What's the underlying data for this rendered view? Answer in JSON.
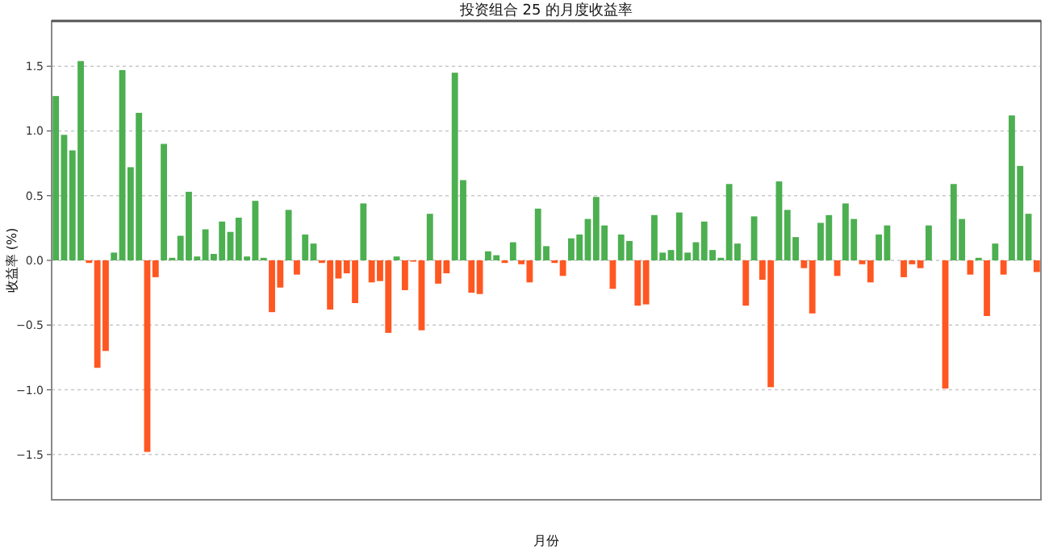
{
  "chart_data": {
    "type": "bar",
    "title": "投资组合 25 的月度收益率",
    "xlabel": "月份",
    "ylabel": "收益率 (%)",
    "categories": [
      null,
      null,
      null,
      null,
      null,
      null,
      null,
      null,
      null,
      null,
      null,
      null,
      null,
      null,
      null,
      null,
      null,
      null,
      null,
      null,
      null,
      null,
      null,
      null,
      null,
      null,
      null,
      null,
      null,
      null,
      null,
      null,
      null,
      null,
      null,
      null,
      null,
      null,
      null,
      null,
      null,
      null,
      null,
      null,
      null,
      null,
      null,
      null,
      null,
      null,
      null,
      null,
      null,
      null,
      null,
      null,
      null,
      null,
      null,
      null,
      null,
      null,
      null,
      null,
      null,
      null,
      null,
      null,
      null,
      null,
      null,
      null,
      null,
      null,
      null,
      null,
      null,
      null,
      null,
      null,
      null,
      null,
      null,
      null,
      null,
      null,
      null,
      null,
      null,
      null,
      null,
      null,
      null,
      null,
      null,
      null,
      null,
      null,
      null,
      null,
      null,
      null,
      null,
      null,
      null,
      null,
      null,
      null,
      null,
      null,
      null,
      null,
      null,
      null,
      null,
      null,
      null,
      null,
      null
    ],
    "values": [
      1.27,
      0.97,
      0.85,
      1.54,
      -0.02,
      -0.83,
      -0.7,
      0.06,
      1.47,
      0.72,
      1.14,
      -1.48,
      -0.13,
      0.9,
      0.02,
      0.19,
      0.53,
      0.03,
      0.24,
      0.05,
      0.3,
      0.22,
      0.33,
      0.03,
      0.46,
      0.02,
      -0.4,
      -0.21,
      0.39,
      -0.11,
      0.2,
      0.13,
      -0.02,
      -0.38,
      -0.14,
      -0.1,
      -0.33,
      0.44,
      -0.17,
      -0.16,
      -0.56,
      0.03,
      -0.23,
      -0.01,
      -0.54,
      0.36,
      -0.18,
      -0.1,
      1.45,
      0.62,
      -0.25,
      -0.26,
      0.07,
      0.04,
      -0.02,
      0.14,
      -0.03,
      -0.17,
      0.4,
      0.11,
      -0.02,
      -0.12,
      0.17,
      0.2,
      0.32,
      0.49,
      0.27,
      -0.22,
      0.2,
      0.15,
      -0.35,
      -0.34,
      0.35,
      0.06,
      0.08,
      0.37,
      0.06,
      0.14,
      0.3,
      0.08,
      0.02,
      0.59,
      0.13,
      -0.35,
      0.34,
      -0.15,
      -0.98,
      0.61,
      0.39,
      0.18,
      -0.06,
      -0.41,
      0.29,
      0.35,
      -0.12,
      0.44,
      0.32,
      -0.03,
      -0.17,
      0.2,
      0.27,
      0,
      -0.13,
      -0.03,
      -0.06,
      0.27,
      0,
      -0.99,
      0.59,
      0.32,
      -0.11,
      0.02,
      -0.43,
      0.13,
      -0.11,
      1.12,
      0.73,
      0.36,
      -0.09
    ],
    "colors": [
      "#4caf50",
      "#4caf50",
      "#4caf50",
      "#4caf50",
      "#ff5722",
      "#ff5722",
      "#ff5722",
      "#4caf50",
      "#4caf50",
      "#4caf50",
      "#4caf50",
      "#ff5722",
      "#ff5722",
      "#4caf50",
      "#4caf50",
      "#4caf50",
      "#4caf50",
      "#4caf50",
      "#4caf50",
      "#4caf50",
      "#4caf50",
      "#4caf50",
      "#4caf50",
      "#4caf50",
      "#4caf50",
      "#4caf50",
      "#ff5722",
      "#ff5722",
      "#4caf50",
      "#ff5722",
      "#4caf50",
      "#4caf50",
      "#ff5722",
      "#ff5722",
      "#ff5722",
      "#ff5722",
      "#ff5722",
      "#4caf50",
      "#ff5722",
      "#ff5722",
      "#ff5722",
      "#4caf50",
      "#ff5722",
      "#ff5722",
      "#ff5722",
      "#4caf50",
      "#ff5722",
      "#ff5722",
      "#4caf50",
      "#4caf50",
      "#ff5722",
      "#ff5722",
      "#4caf50",
      "#4caf50",
      "#ff5722",
      "#4caf50",
      "#ff5722",
      "#ff5722",
      "#4caf50",
      "#4caf50",
      "#ff5722",
      "#ff5722",
      "#4caf50",
      "#4caf50",
      "#4caf50",
      "#4caf50",
      "#4caf50",
      "#ff5722",
      "#4caf50",
      "#4caf50",
      "#ff5722",
      "#ff5722",
      "#4caf50",
      "#4caf50",
      "#4caf50",
      "#4caf50",
      "#4caf50",
      "#4caf50",
      "#4caf50",
      "#4caf50",
      "#4caf50",
      "#4caf50",
      "#4caf50",
      "#ff5722",
      "#4caf50",
      "#ff5722",
      "#ff5722",
      "#4caf50",
      "#4caf50",
      "#4caf50",
      "#ff5722",
      "#ff5722",
      "#4caf50",
      "#4caf50",
      "#ff5722",
      "#4caf50",
      "#4caf50",
      "#ff5722",
      "#ff5722",
      "#4caf50",
      "#4caf50",
      "#4caf50",
      "#ff5722",
      "#ff5722",
      "#ff5722",
      "#4caf50",
      "#4caf50",
      "#ff5722",
      "#4caf50",
      "#4caf50",
      "#ff5722",
      "#4caf50",
      "#ff5722",
      "#4caf50",
      "#ff5722",
      "#4caf50",
      "#4caf50",
      "#4caf50",
      "#ff5722"
    ],
    "ylim": [
      -1.85,
      1.85
    ],
    "yticks": [
      {
        "value": -1.5,
        "label": "−1.5"
      },
      {
        "value": -1.0,
        "label": "−1.0"
      },
      {
        "value": -0.5,
        "label": "−0.5"
      },
      {
        "value": 0,
        "label": "0.0"
      },
      0.5,
      {
        "value": 1.0,
        "label": "1.0"
      },
      1.5
    ],
    "grid": "y"
  }
}
